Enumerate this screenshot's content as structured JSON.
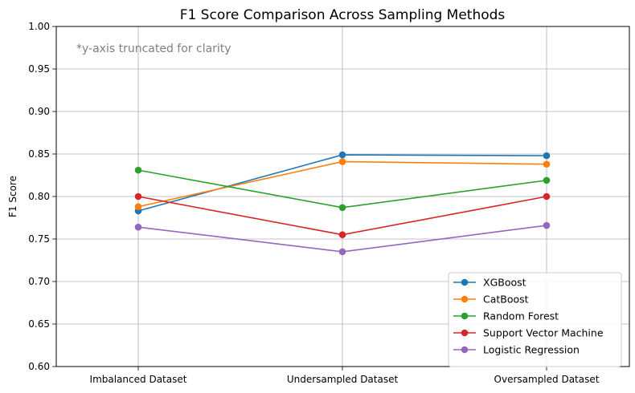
{
  "chart_data": {
    "type": "line",
    "title": "F1 Score Comparison Across Sampling Methods",
    "xlabel": "",
    "ylabel": "F1 Score",
    "annotation": "*y-axis truncated for clarity",
    "categories": [
      "Imbalanced Dataset",
      "Undersampled Dataset",
      "Oversampled Dataset"
    ],
    "ylim": [
      0.6,
      1.0
    ],
    "yticks": [
      "0.60",
      "0.65",
      "0.70",
      "0.75",
      "0.80",
      "0.85",
      "0.90",
      "0.95",
      "1.00"
    ],
    "grid": true,
    "legend_position": "bottom-right",
    "series": [
      {
        "name": "XGBoost",
        "color": "#1f77b4",
        "values": [
          0.783,
          0.849,
          0.848
        ]
      },
      {
        "name": "CatBoost",
        "color": "#ff7f0e",
        "values": [
          0.788,
          0.841,
          0.838
        ]
      },
      {
        "name": "Random Forest",
        "color": "#2ca02c",
        "values": [
          0.831,
          0.787,
          0.819
        ]
      },
      {
        "name": "Support Vector Machine",
        "color": "#d62728",
        "values": [
          0.8,
          0.755,
          0.8
        ]
      },
      {
        "name": "Logistic Regression",
        "color": "#9467bd",
        "values": [
          0.764,
          0.735,
          0.766
        ]
      }
    ]
  }
}
